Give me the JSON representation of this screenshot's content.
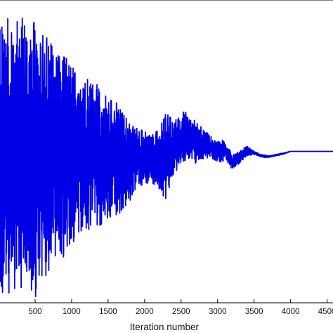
{
  "chart_data": {
    "type": "line",
    "title": "",
    "xlabel": "Iteration number",
    "ylabel": "",
    "xlim": [
      0,
      4600
    ],
    "ylim": [
      -1,
      1
    ],
    "xticks": [
      500,
      1000,
      1500,
      2000,
      2500,
      3000,
      3500,
      4000,
      4500
    ],
    "xtick_labels": [
      "500",
      "1000",
      "1500",
      "2000",
      "2500",
      "3000",
      "3500",
      "4000",
      "4500"
    ],
    "grid": false,
    "legend": "none",
    "series": [
      {
        "color": "#0000e6",
        "x": [
          0,
          100,
          200,
          300,
          400,
          500,
          600,
          700,
          800,
          900,
          1000,
          1100,
          1200,
          1300,
          1400,
          1500,
          1600,
          1700,
          1800,
          1900,
          2000,
          2100,
          2200,
          2300,
          2400,
          2500,
          2600,
          2700,
          2800,
          2900,
          3000,
          3100,
          3200,
          3300,
          3400,
          3500,
          3600,
          3700,
          3800,
          3900,
          4000,
          4200,
          4400,
          4600
        ],
        "y_upper": [
          0.95,
          0.95,
          0.92,
          0.9,
          0.88,
          0.86,
          0.82,
          0.74,
          0.7,
          0.64,
          0.58,
          0.55,
          0.5,
          0.46,
          0.42,
          0.38,
          0.34,
          0.26,
          0.2,
          0.16,
          0.13,
          0.12,
          0.14,
          0.28,
          0.2,
          0.26,
          0.27,
          0.2,
          0.16,
          0.1,
          0.07,
          0.08,
          -0.02,
          0.0,
          0.04,
          0.0,
          -0.02,
          -0.03,
          -0.02,
          -0.01,
          0.0,
          0.0,
          0.0,
          0.0
        ],
        "y_lower": [
          -0.95,
          -0.95,
          -0.92,
          -0.95,
          -0.9,
          -0.97,
          -0.88,
          -0.8,
          -0.72,
          -0.7,
          -0.62,
          -0.58,
          -0.54,
          -0.49,
          -0.5,
          -0.46,
          -0.44,
          -0.4,
          -0.34,
          -0.24,
          -0.22,
          -0.2,
          -0.28,
          -0.32,
          -0.16,
          -0.08,
          -0.05,
          -0.08,
          -0.05,
          -0.04,
          -0.08,
          -0.06,
          -0.12,
          -0.08,
          -0.03,
          -0.02,
          -0.04,
          -0.04,
          -0.03,
          -0.02,
          0.0,
          0.0,
          0.0,
          0.0
        ]
      }
    ]
  }
}
